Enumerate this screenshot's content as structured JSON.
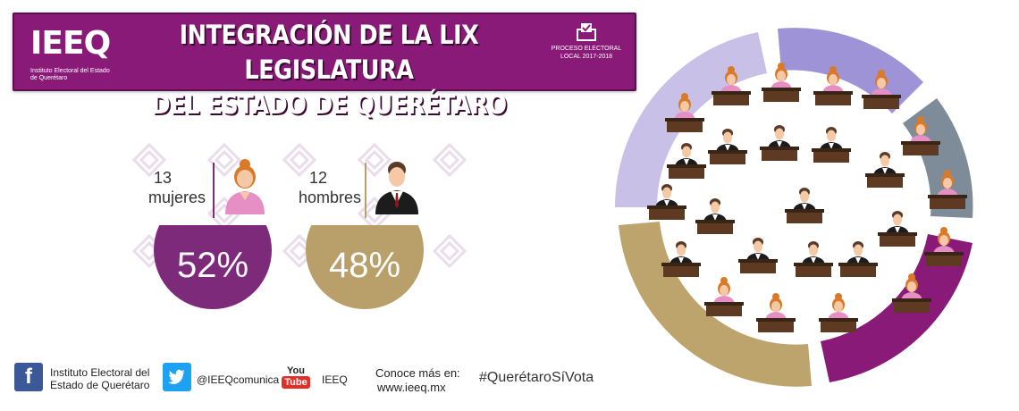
{
  "header": {
    "logo": "IEEQ",
    "logo_subtitle": "Instituto Electoral del Estado de Querétaro",
    "title_line1": "INTEGRACIÓN DE LA LIX LEGISLATURA",
    "title_line2": "DEL ESTADO DE QUERÉTARO",
    "process_label": "PROCESO ELECTORAL LOCAL 2017-2018"
  },
  "stats": {
    "women": {
      "count": "13",
      "label": "mujeres",
      "percent": "52%",
      "color": "#7d2a7a"
    },
    "men": {
      "count": "12",
      "label": "hombres",
      "percent": "48%",
      "color": "#b9a06a"
    }
  },
  "footer": {
    "facebook": "Instituto Electoral del Estado de Querétaro",
    "twitter": "@IEEQcomunica",
    "youtube": "IEEQ",
    "youtube_icon_text_top": "You",
    "youtube_icon_text_bottom": "Tube",
    "more_info_line1": "Conoce más en:",
    "more_info_line2": "www.ieeq.mx",
    "hashtag": "#QuerétaroSíVota"
  },
  "colors": {
    "purple": "#8a1a78",
    "gold": "#b9a06a",
    "lavender": "#9b8fd0",
    "gray": "#7f8c99",
    "pale_lavender": "#c5bde6"
  },
  "icons": [
    "facebook-icon",
    "twitter-icon",
    "youtube-icon",
    "ballot-box-icon",
    "woman-icon",
    "man-icon"
  ]
}
